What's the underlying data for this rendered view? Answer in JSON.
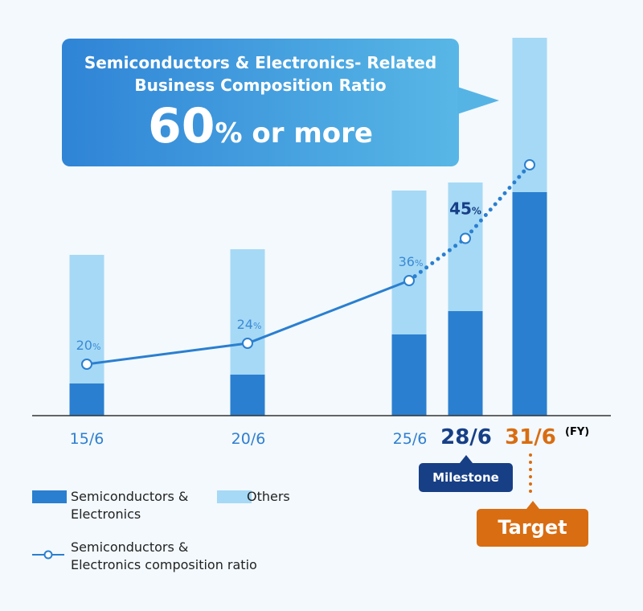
{
  "callout": {
    "line1": "Semiconductors & Electronics- Related",
    "line2": "Business Composition Ratio",
    "value": "60",
    "suffix": "% or more"
  },
  "chart_data": {
    "type": "bar+line",
    "categories": [
      "15/6",
      "20/6",
      "25/6",
      "28/6",
      "31/6"
    ],
    "x_unit": "(FY)",
    "series": [
      {
        "name": "Semiconductors & Electronics",
        "type": "stacked-bar",
        "values": [
          40,
          51,
          101,
          130,
          278
        ]
      },
      {
        "name": "Others",
        "type": "stacked-bar",
        "values": [
          160,
          156,
          179,
          160,
          192
        ]
      },
      {
        "name": "Semiconductors & Electronics composition ratio",
        "type": "line",
        "values": [
          20,
          24,
          36,
          45,
          60
        ],
        "labels": [
          "20",
          "24",
          "36",
          "45",
          ""
        ],
        "unit": "%",
        "dotted_from_index": 2
      }
    ],
    "y_axis_shown": false,
    "grid": false,
    "legend": "bottom-left",
    "colors": {
      "semi": "#2a7fd0",
      "others": "#a6d9f5",
      "line": "#2a7fd0",
      "milestone": "#173f86",
      "target": "#d96d12"
    }
  },
  "annotations": {
    "milestone": "Milestone",
    "target": "Target"
  },
  "legend": {
    "semi_line1": "Semiconductors &",
    "semi_line2": "Electronics",
    "others": "Others",
    "ratio_line1": "Semiconductors &",
    "ratio_line2": "Electronics composition ratio"
  }
}
